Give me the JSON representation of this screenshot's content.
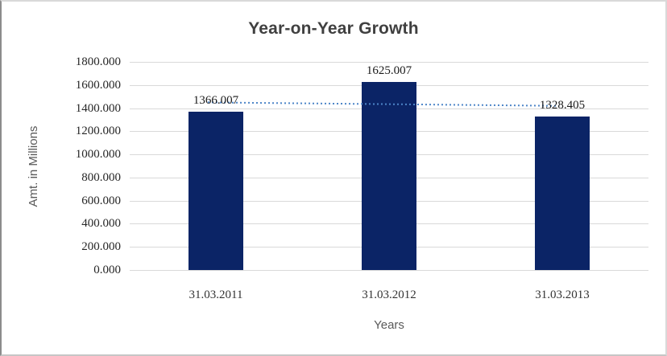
{
  "window": {
    "background": "#ffffff",
    "border_color": "#d9d9d9"
  },
  "chart_data": {
    "type": "bar",
    "title": "Year-on-Year Growth",
    "categories": [
      "31.03.2011",
      "31.03.2012",
      "31.03.2013"
    ],
    "values": [
      1366.007,
      1625.007,
      1328.405
    ],
    "data_labels": [
      "1366.007",
      "1625.007",
      "1328.405"
    ],
    "xlabel": "Years",
    "ylabel": "Amt. in Millions",
    "ylim": [
      0,
      1800
    ],
    "ytick_labels": [
      "1800.000",
      "1600.000",
      "1400.000",
      "1200.000",
      "1000.000",
      "800.000",
      "600.000",
      "400.000",
      "200.000",
      "0.000"
    ],
    "grid": true,
    "legend": "none",
    "bar_color": "#0b2466",
    "gridline_color": "#d9d9d9",
    "title_color": "#404040",
    "tick_label_color": "#262626",
    "axis_title_color": "#595959",
    "trendline": {
      "type": "linear",
      "style": "dotted",
      "color": "#4e86c8",
      "start_value": 1450,
      "end_value": 1420
    }
  }
}
